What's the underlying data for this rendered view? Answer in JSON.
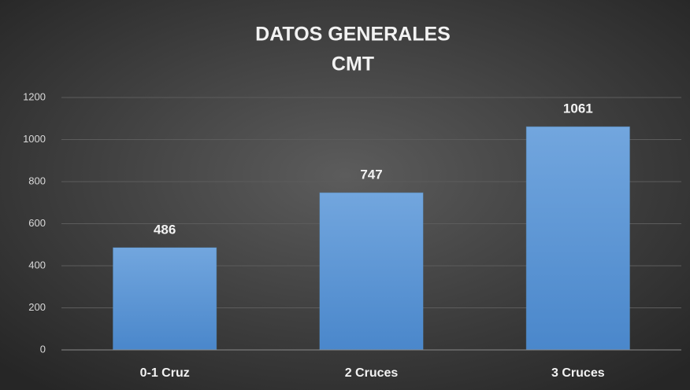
{
  "chart_data": {
    "type": "bar",
    "title": "DATOS  GENERALES",
    "subtitle": "CMT",
    "categories": [
      "0-1 Cruz",
      "2 Cruces",
      "3 Cruces"
    ],
    "values": [
      486,
      747,
      1061
    ],
    "color": "#5b9bd5",
    "ylim": [
      0,
      1200
    ],
    "yticks": [
      0,
      200,
      400,
      600,
      800,
      1000,
      1200
    ],
    "grid": true
  }
}
